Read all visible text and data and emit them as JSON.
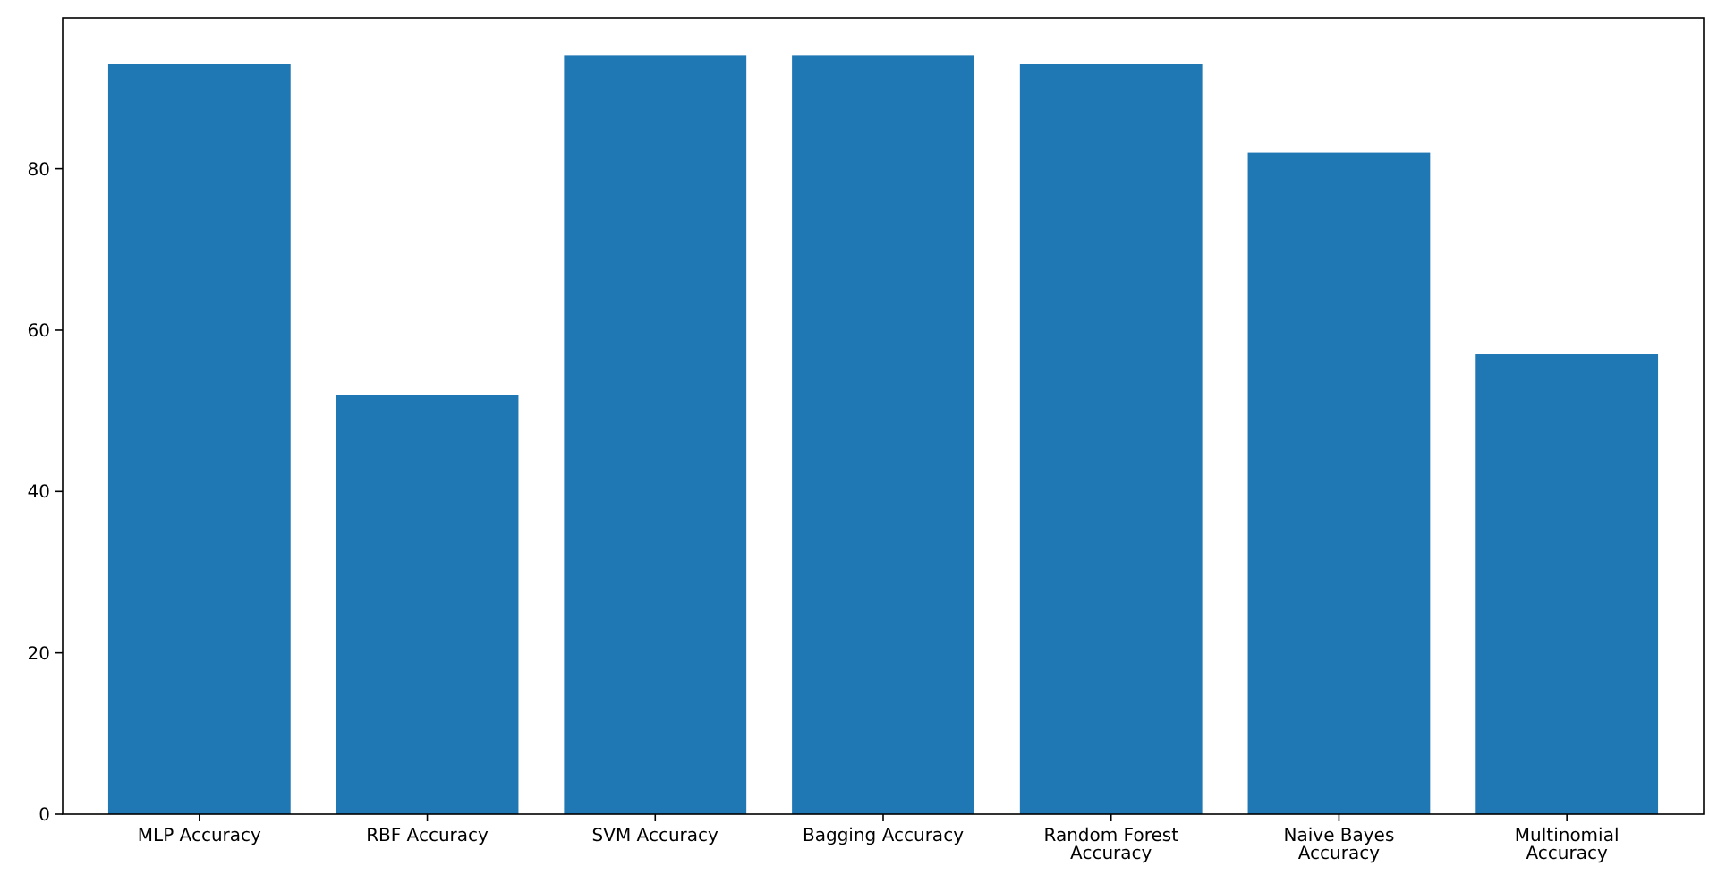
{
  "chart_data": {
    "type": "bar",
    "categories": [
      "MLP Accuracy",
      "RBF Accuracy",
      "SVM Accuracy",
      "Bagging Accuracy",
      "Random Forest Accuracy",
      "Naive Bayes Accuracy",
      "Multinomial Accuracy"
    ],
    "values": [
      93,
      52,
      94,
      94,
      93,
      82,
      57
    ],
    "color": "#1f77b4",
    "ylim": [
      0,
      98.7
    ],
    "yticks": [
      0,
      20,
      40,
      60,
      80
    ],
    "grid": false
  }
}
